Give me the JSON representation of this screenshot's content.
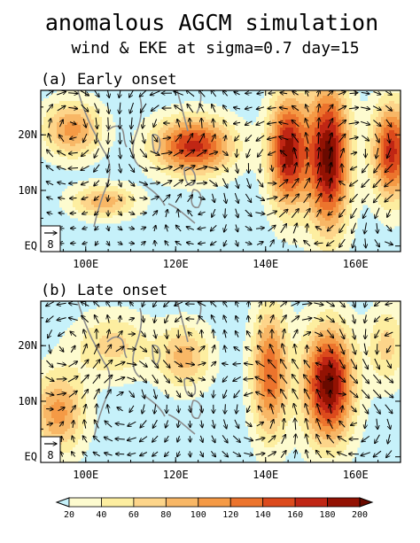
{
  "figure": {
    "title": "anomalous AGCM simulation",
    "subtitle": "wind & EKE at sigma=0.7 day=15"
  },
  "chart_data": [
    {
      "type": "heatmap",
      "title": "(a) Early onset",
      "xlim": [
        90,
        170
      ],
      "ylim": [
        -1,
        28
      ],
      "x_ticks": [
        100,
        120,
        140,
        160
      ],
      "x_tick_labels": [
        "100E",
        "120E",
        "140E",
        "160E"
      ],
      "y_ticks": [
        0,
        10,
        20
      ],
      "y_tick_labels": [
        "EQ",
        "10N",
        "20N"
      ],
      "reference_vector": {
        "label": "8",
        "value": 8
      },
      "eke_blobs": [
        {
          "lon": 97,
          "lat": 21,
          "peak": 100,
          "sx": 4.5,
          "sy": 3.5
        },
        {
          "lon": 104,
          "lat": 8,
          "peak": 85,
          "sx": 5,
          "sy": 2
        },
        {
          "lon": 124,
          "lat": 18,
          "peak": 160,
          "sx": 6,
          "sy": 3.5
        },
        {
          "lon": 145,
          "lat": 17,
          "peak": 180,
          "sx": 3,
          "sy": 7
        },
        {
          "lon": 154,
          "lat": 16,
          "peak": 200,
          "sx": 3.2,
          "sy": 9
        },
        {
          "lon": 168,
          "lat": 17,
          "peak": 160,
          "sx": 3,
          "sy": 6
        }
      ],
      "vortices": [
        {
          "lon": 97,
          "lat": 21,
          "rot": -1,
          "r": 6
        },
        {
          "lon": 118,
          "lat": 21,
          "rot": 1,
          "r": 7
        },
        {
          "lon": 125,
          "lat": 9,
          "rot": -1,
          "r": 5
        },
        {
          "lon": 144,
          "lat": 13,
          "rot": 1,
          "r": 7
        },
        {
          "lon": 150,
          "lat": 5,
          "rot": -1,
          "r": 6
        },
        {
          "lon": 160,
          "lat": 15,
          "rot": -1,
          "r": 7
        },
        {
          "lon": 168,
          "lat": 7,
          "rot": 1,
          "r": 6
        }
      ]
    },
    {
      "type": "heatmap",
      "title": "(b) Late onset",
      "xlim": [
        90,
        170
      ],
      "ylim": [
        -1,
        28
      ],
      "x_ticks": [
        100,
        120,
        140,
        160
      ],
      "x_tick_labels": [
        "100E",
        "120E",
        "140E",
        "160E"
      ],
      "y_ticks": [
        0,
        10,
        20
      ],
      "y_tick_labels": [
        "EQ",
        "10N",
        "20N"
      ],
      "reference_vector": {
        "label": "8",
        "value": 8
      },
      "eke_blobs": [
        {
          "lon": 94,
          "lat": 8,
          "peak": 100,
          "sx": 4,
          "sy": 5
        },
        {
          "lon": 106,
          "lat": 20,
          "peak": 60,
          "sx": 6,
          "sy": 4
        },
        {
          "lon": 122,
          "lat": 18,
          "peak": 80,
          "sx": 4,
          "sy": 4
        },
        {
          "lon": 141,
          "lat": 15,
          "peak": 130,
          "sx": 2.8,
          "sy": 8
        },
        {
          "lon": 154,
          "lat": 13,
          "peak": 200,
          "sx": 3.8,
          "sy": 7
        },
        {
          "lon": 167,
          "lat": 20,
          "peak": 60,
          "sx": 3,
          "sy": 5
        }
      ],
      "vortices": [
        {
          "lon": 96,
          "lat": 20,
          "rot": 1,
          "r": 6
        },
        {
          "lon": 108,
          "lat": 10,
          "rot": -1,
          "r": 6
        },
        {
          "lon": 123,
          "lat": 22,
          "rot": 1,
          "r": 5
        },
        {
          "lon": 138,
          "lat": 8,
          "rot": 1,
          "r": 6
        },
        {
          "lon": 150,
          "lat": 20,
          "rot": -1,
          "r": 6
        },
        {
          "lon": 160,
          "lat": 8,
          "rot": -1,
          "r": 7
        },
        {
          "lon": 168,
          "lat": 16,
          "rot": 1,
          "r": 6
        }
      ]
    }
  ],
  "colorbar": {
    "levels": [
      20,
      40,
      60,
      80,
      100,
      120,
      140,
      160,
      180,
      200
    ],
    "colors": [
      "#c6f1fa",
      "#fdfbcf",
      "#fdeea0",
      "#fdd58a",
      "#f8b766",
      "#f59a45",
      "#ec742d",
      "#dc4a1c",
      "#c02614",
      "#931203",
      "#6a0a00"
    ]
  }
}
